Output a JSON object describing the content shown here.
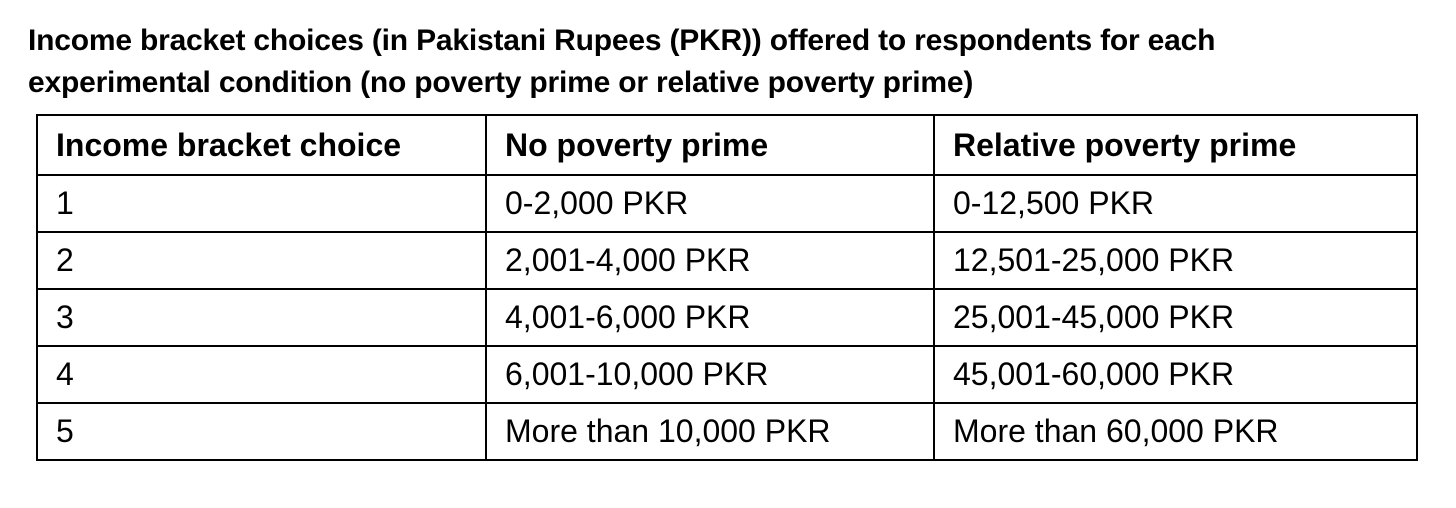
{
  "caption": {
    "line1": "Income bracket choices (in Pakistani Rupees (PKR)) offered to respondents for each",
    "line2": "experimental condition (no poverty prime or relative poverty prime)"
  },
  "table": {
    "headers": [
      "Income bracket choice",
      "No poverty prime",
      "Relative poverty prime"
    ],
    "rows": [
      [
        "1",
        "0-2,000 PKR",
        "0-12,500 PKR"
      ],
      [
        "2",
        "2,001-4,000 PKR",
        "12,501-25,000 PKR"
      ],
      [
        "3",
        "4,001-6,000 PKR",
        "25,001-45,000 PKR"
      ],
      [
        "4",
        "6,001-10,000 PKR",
        "45,001-60,000 PKR"
      ],
      [
        "5",
        "More than 10,000 PKR",
        "More than 60,000 PKR"
      ]
    ]
  }
}
